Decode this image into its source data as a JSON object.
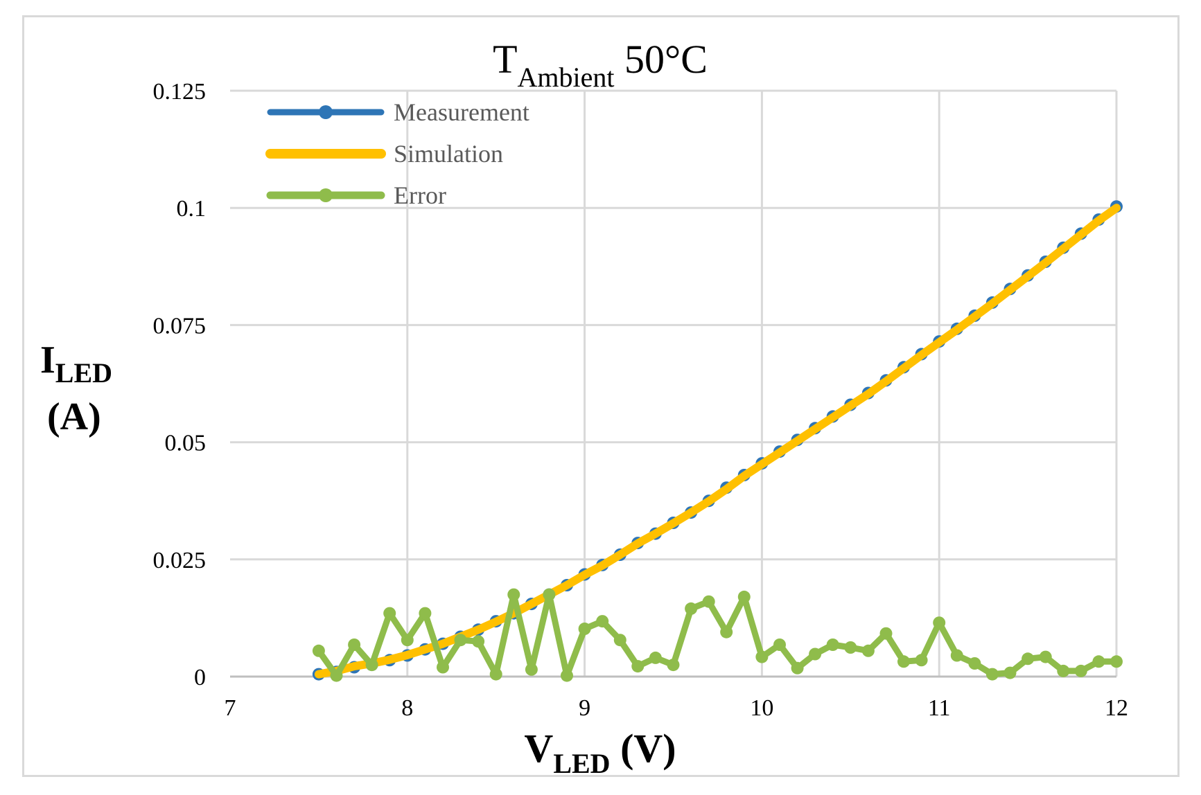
{
  "chart_data": {
    "type": "line",
    "title": {
      "main": "T",
      "sub": "Ambient",
      "rest": " 50°C"
    },
    "xlabel": {
      "main": "V",
      "sub": "LED",
      "rest": " (V)"
    },
    "ylabel": {
      "main": "I",
      "sub": "LED",
      "line2": "(A)"
    },
    "xlim": [
      7,
      12
    ],
    "ylim": [
      0,
      0.125
    ],
    "xticks": [
      "7",
      "8",
      "9",
      "10",
      "11",
      "12"
    ],
    "xtick_values": [
      7,
      8,
      9,
      10,
      11,
      12
    ],
    "yticks": [
      "0",
      "0.025",
      "0.05",
      "0.075",
      "0.1",
      "0.125"
    ],
    "ytick_values": [
      0,
      0.025,
      0.05,
      0.075,
      0.1,
      0.125
    ],
    "grid": true,
    "legend_position": "top-left",
    "x": [
      7.5,
      7.6,
      7.7,
      7.8,
      7.9,
      8.0,
      8.1,
      8.2,
      8.3,
      8.4,
      8.5,
      8.6,
      8.7,
      8.8,
      8.9,
      9.0,
      9.1,
      9.2,
      9.3,
      9.4,
      9.5,
      9.6,
      9.7,
      9.8,
      9.9,
      10.0,
      10.1,
      10.2,
      10.3,
      10.4,
      10.5,
      10.6,
      10.7,
      10.8,
      10.9,
      11.0,
      11.1,
      11.2,
      11.3,
      11.4,
      11.5,
      11.6,
      11.7,
      11.8,
      11.9,
      12.0
    ],
    "series": [
      {
        "name": "Measurement",
        "color": "#2e75b6",
        "values": [
          0.0005,
          0.001,
          0.002,
          0.0025,
          0.0035,
          0.0045,
          0.0058,
          0.007,
          0.0085,
          0.01,
          0.0118,
          0.0135,
          0.0155,
          0.0175,
          0.0195,
          0.0218,
          0.0238,
          0.026,
          0.0285,
          0.0305,
          0.0328,
          0.035,
          0.0375,
          0.0403,
          0.043,
          0.0455,
          0.048,
          0.0505,
          0.053,
          0.0555,
          0.058,
          0.0605,
          0.0632,
          0.066,
          0.0688,
          0.0715,
          0.0742,
          0.077,
          0.0798,
          0.0827,
          0.0856,
          0.0885,
          0.0915,
          0.0945,
          0.0975,
          0.1003
        ]
      },
      {
        "name": "Simulation",
        "color": "#ffc000",
        "values": [
          0.0005,
          0.0012,
          0.0022,
          0.0028,
          0.0036,
          0.0046,
          0.0058,
          0.007,
          0.0085,
          0.01,
          0.0117,
          0.0135,
          0.0155,
          0.0175,
          0.0195,
          0.0217,
          0.0237,
          0.026,
          0.0284,
          0.0305,
          0.0327,
          0.035,
          0.0374,
          0.04,
          0.0428,
          0.0453,
          0.0478,
          0.0503,
          0.0528,
          0.0553,
          0.0578,
          0.0603,
          0.063,
          0.0658,
          0.0686,
          0.0713,
          0.074,
          0.0768,
          0.0796,
          0.0825,
          0.0854,
          0.0883,
          0.0913,
          0.0943,
          0.0973,
          0.1
        ]
      },
      {
        "name": "Error",
        "color": "#8fbc4b",
        "values": [
          0.0055,
          0.0002,
          0.0068,
          0.0025,
          0.0135,
          0.0078,
          0.0135,
          0.002,
          0.0078,
          0.0075,
          0.0005,
          0.0175,
          0.0015,
          0.0175,
          0.0002,
          0.0102,
          0.0118,
          0.0078,
          0.0022,
          0.004,
          0.0025,
          0.0145,
          0.016,
          0.0095,
          0.017,
          0.0042,
          0.0068,
          0.0018,
          0.0048,
          0.0068,
          0.0062,
          0.0055,
          0.0092,
          0.0032,
          0.0035,
          0.0115,
          0.0045,
          0.0028,
          0.0005,
          0.0008,
          0.0038,
          0.0042,
          0.0012,
          0.0012,
          0.0032,
          0.0032
        ]
      }
    ]
  }
}
